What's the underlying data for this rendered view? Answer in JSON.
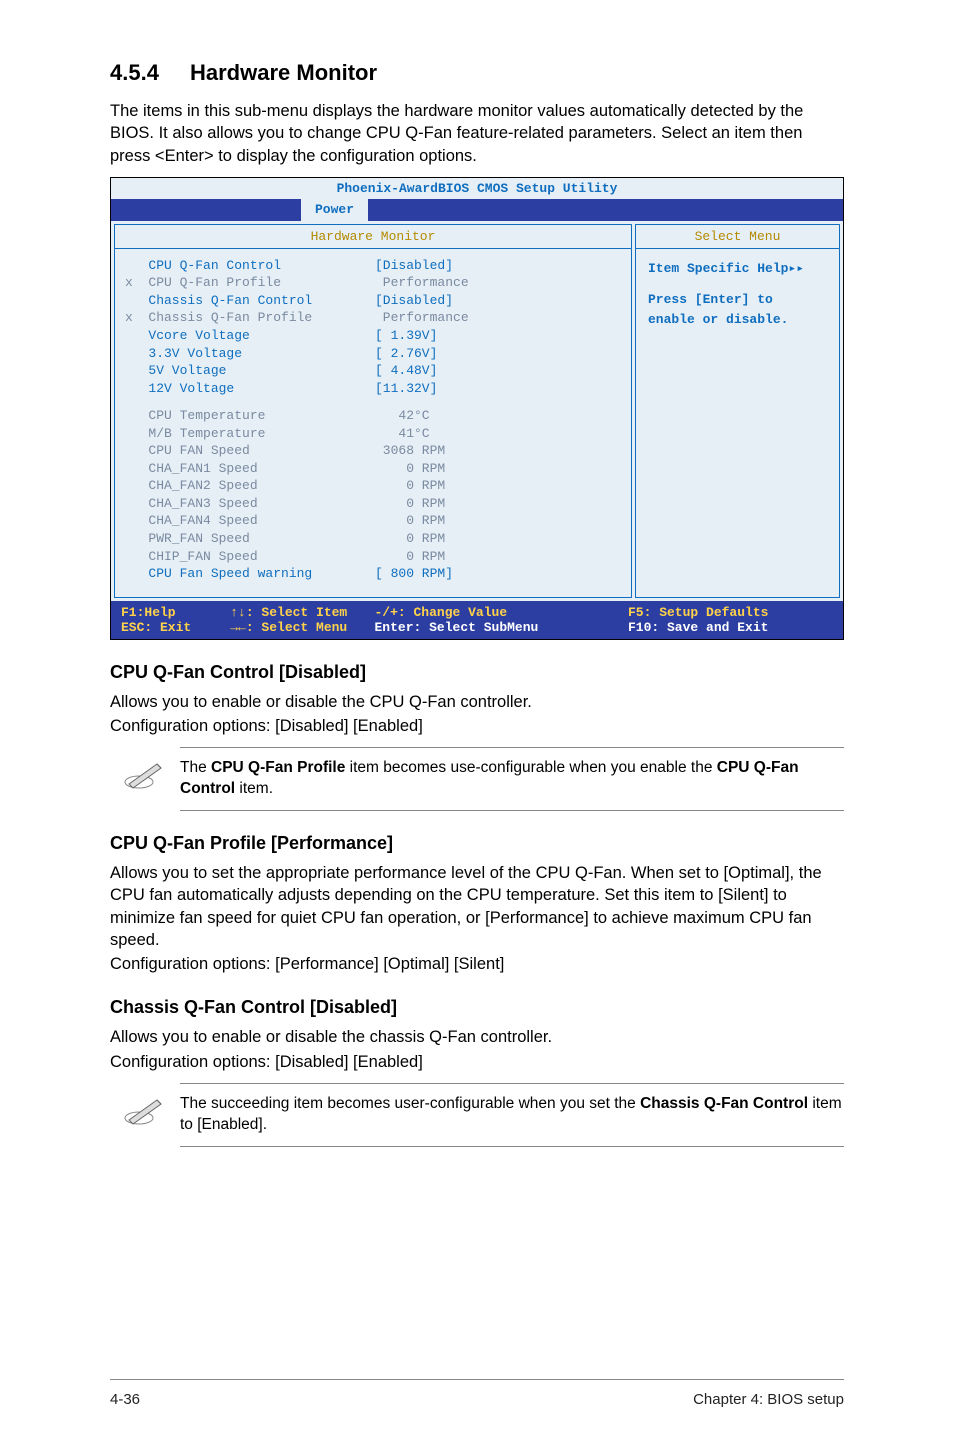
{
  "section": {
    "number": "4.5.4",
    "title": "Hardware Monitor"
  },
  "intro": "The items in this sub-menu displays the hardware monitor values automatically detected by the BIOS. It also allows you to change CPU Q-Fan feature-related parameters. Select an item then press <Enter> to display the configuration options.",
  "bios": {
    "title": "Phoenix-AwardBIOS CMOS Setup Utility",
    "tab": "Power",
    "left_header": "Hardware Monitor",
    "right_header": "Select Menu",
    "rows": [
      {
        "prefix": "   ",
        "label": "CPU Q-Fan Control",
        "value": "[Disabled]",
        "dim": false
      },
      {
        "prefix": "x  ",
        "label": "CPU Q-Fan Profile",
        "value": " Performance",
        "dim": true
      },
      {
        "prefix": "   ",
        "label": "Chassis Q-Fan Control",
        "value": "[Disabled]",
        "dim": false
      },
      {
        "prefix": "x  ",
        "label": "Chassis Q-Fan Profile",
        "value": " Performance",
        "dim": true
      },
      {
        "prefix": "   ",
        "label": "Vcore Voltage",
        "value": "[ 1.39V]",
        "dim": false
      },
      {
        "prefix": "   ",
        "label": "3.3V Voltage",
        "value": "[ 2.76V]",
        "dim": false
      },
      {
        "prefix": "   ",
        "label": "5V Voltage",
        "value": "[ 4.48V]",
        "dim": false
      },
      {
        "prefix": "   ",
        "label": "12V Voltage",
        "value": "[11.32V]",
        "dim": false
      }
    ],
    "rows2": [
      {
        "prefix": "   ",
        "label": "CPU Temperature",
        "value": "   42°C",
        "dim": true
      },
      {
        "prefix": "   ",
        "label": "M/B Temperature",
        "value": "   41°C",
        "dim": true
      },
      {
        "prefix": "   ",
        "label": "CPU FAN Speed",
        "value": " 3068 RPM",
        "dim": true
      },
      {
        "prefix": "   ",
        "label": "CHA_FAN1 Speed",
        "value": "    0 RPM",
        "dim": true
      },
      {
        "prefix": "   ",
        "label": "CHA_FAN2 Speed",
        "value": "    0 RPM",
        "dim": true
      },
      {
        "prefix": "   ",
        "label": "CHA_FAN3 Speed",
        "value": "    0 RPM",
        "dim": true
      },
      {
        "prefix": "   ",
        "label": "CHA_FAN4 Speed",
        "value": "    0 RPM",
        "dim": true
      },
      {
        "prefix": "   ",
        "label": "PWR_FAN Speed",
        "value": "    0 RPM",
        "dim": true
      },
      {
        "prefix": "   ",
        "label": "CHIP_FAN Speed",
        "value": "    0 RPM",
        "dim": true
      },
      {
        "prefix": "   ",
        "label": "CPU Fan Speed warning",
        "value": "[ 800 RPM]",
        "dim": false
      }
    ],
    "help": {
      "line1": "Item Specific Help▸▸",
      "line2": "Press [Enter] to",
      "line3": "enable or disable."
    },
    "footer": {
      "l1a": "F1:Help       ",
      "l1b": "↑↓: Select Item",
      "l1c": "-/+: Change Value",
      "l1d": "F5: Setup Defaults",
      "l2a": "ESC: Exit     ",
      "l2b": "→←: Select Menu",
      "l2c": "Enter: Select SubMenu",
      "l2d": "F10: Save and Exit"
    }
  },
  "sub1": {
    "heading": "CPU Q-Fan Control [Disabled]",
    "p1": "Allows you to enable or disable the CPU Q-Fan controller.",
    "p2": "Configuration options: [Disabled] [Enabled]",
    "note_pre": "The ",
    "note_b1": "CPU Q-Fan Profile",
    "note_mid": " item becomes use-configurable when you enable the ",
    "note_b2": "CPU Q-Fan Control",
    "note_post": " item."
  },
  "sub2": {
    "heading": "CPU Q-Fan Profile [Performance]",
    "p": "Allows you to set the appropriate performance level of the CPU Q-Fan. When set to [Optimal], the CPU fan automatically adjusts depending on the CPU temperature. Set this item to [Silent] to minimize fan speed for quiet CPU fan operation, or [Performance] to achieve maximum CPU fan speed.",
    "p2": "Configuration options: [Performance] [Optimal] [Silent]"
  },
  "sub3": {
    "heading": "Chassis Q-Fan Control [Disabled]",
    "p1": "Allows you to enable or disable the chassis Q-Fan controller.",
    "p2": "Configuration options: [Disabled] [Enabled]",
    "note_pre": "The succeeding item becomes user-configurable when you set the ",
    "note_b1": "Chassis Q-Fan Control",
    "note_post": " item to [Enabled]."
  },
  "footer": {
    "left": "4-36",
    "right": "Chapter 4: BIOS setup"
  }
}
